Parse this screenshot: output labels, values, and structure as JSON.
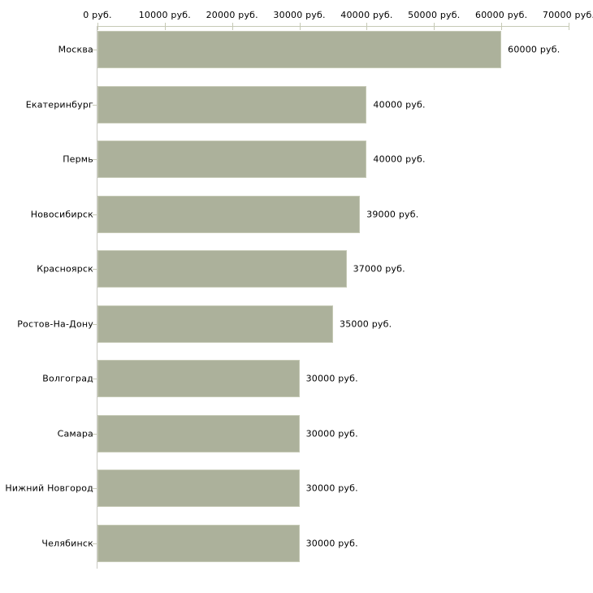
{
  "chart_data": {
    "type": "bar",
    "orientation": "horizontal",
    "title": "",
    "xlabel": "",
    "ylabel": "",
    "categories": [
      "Москва",
      "Екатеринбург",
      "Пермь",
      "Новосибирск",
      "Красноярск",
      "Ростов-На-Дону",
      "Волгоград",
      "Самара",
      "Нижний Новгород",
      "Челябинск"
    ],
    "values": [
      60000,
      40000,
      40000,
      39000,
      37000,
      35000,
      30000,
      30000,
      30000,
      30000
    ],
    "value_labels": [
      "60000 руб.",
      "40000 руб.",
      "40000 руб.",
      "39000 руб.",
      "37000 руб.",
      "35000 руб.",
      "30000 руб.",
      "30000 руб.",
      "30000 руб.",
      "30000 руб."
    ],
    "axis": {
      "position": "top",
      "min": 0,
      "max": 70000,
      "tick_step": 10000,
      "tick_labels": [
        "0 руб.",
        "10000 руб.",
        "20000 руб.",
        "30000 руб.",
        "40000 руб.",
        "50000 руб.",
        "60000 руб.",
        "70000 руб."
      ]
    },
    "grid": false,
    "legend": false,
    "colors": {
      "bar": "#acb19b",
      "bar_border": "#c5c9b5",
      "axis_line": "#c6c9b5",
      "text": "#000000",
      "background": "#ffffff"
    }
  }
}
